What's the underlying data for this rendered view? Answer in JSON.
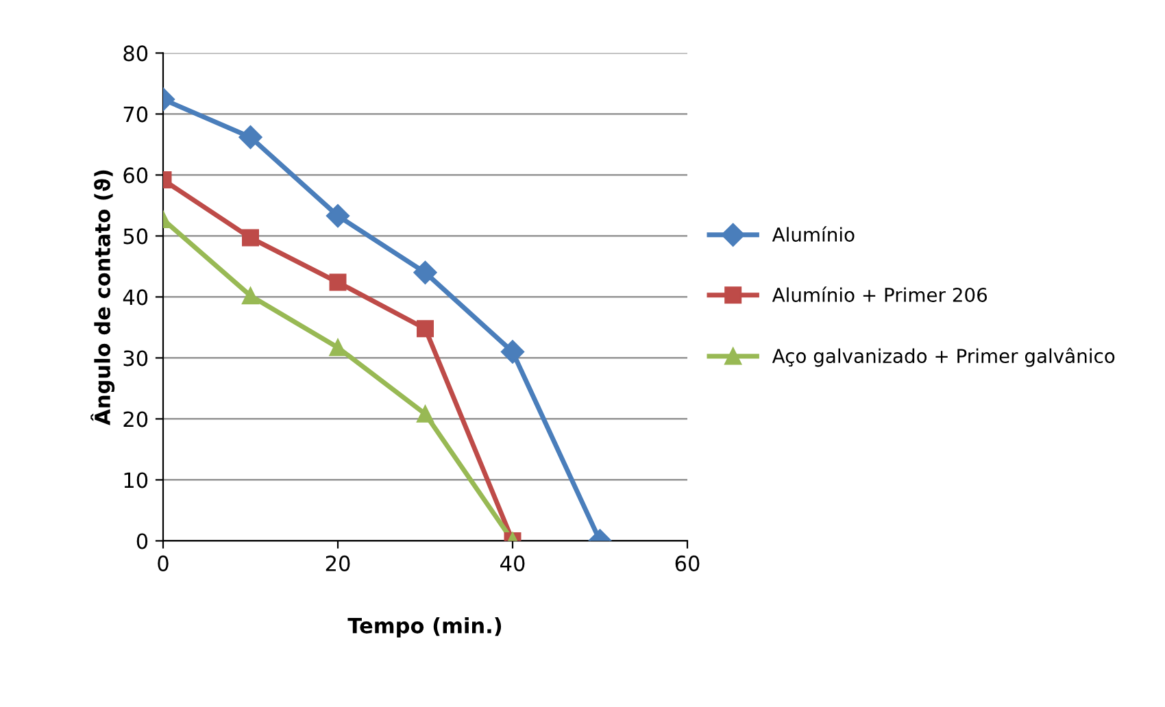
{
  "chart_data": {
    "type": "line",
    "xlabel": "Tempo (min.)",
    "ylabel": "Ângulo de contato (ϑ)",
    "xlim": [
      0,
      60
    ],
    "xticks": [
      0,
      20,
      40,
      60
    ],
    "ylim": [
      0,
      80
    ],
    "yticks": [
      0,
      10,
      20,
      30,
      40,
      50,
      60,
      70,
      80
    ],
    "grid": "y",
    "legend": "right",
    "series": [
      {
        "name": "Alumínio",
        "color": "#4a7ebb",
        "marker": "diamond",
        "x": [
          0,
          10,
          20,
          30,
          40,
          50
        ],
        "values": [
          72.4,
          66.2,
          53.3,
          44,
          31,
          0
        ]
      },
      {
        "name": "Alumínio + Primer 206",
        "color": "#be4b48",
        "marker": "square",
        "x": [
          0,
          10,
          20,
          30,
          40
        ],
        "values": [
          59.2,
          49.7,
          42.4,
          34.8,
          0
        ]
      },
      {
        "name": "Aço galvanizado + Primer galvânico",
        "color": "#98b954",
        "marker": "triangle",
        "x": [
          0,
          10,
          20,
          30,
          40
        ],
        "values": [
          52.7,
          40.2,
          31.7,
          20.8,
          0
        ]
      }
    ]
  }
}
